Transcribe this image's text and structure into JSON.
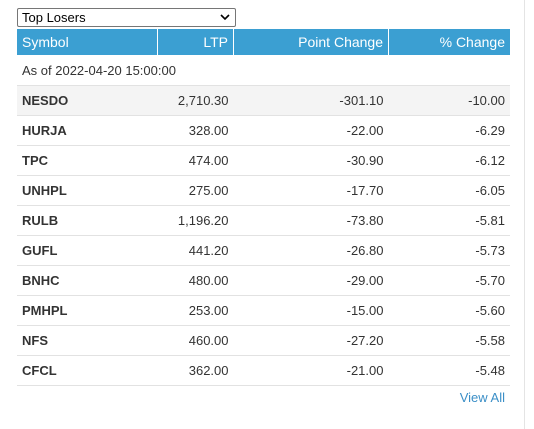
{
  "dropdown": {
    "selected": "Top Losers"
  },
  "table": {
    "headers": {
      "symbol": "Symbol",
      "ltp": "LTP",
      "point_change": "Point Change",
      "pct_change": "% Change"
    },
    "as_of": "As of 2022-04-20 15:00:00",
    "rows": [
      {
        "symbol": "NESDO",
        "ltp": "2,710.30",
        "point_change": "-301.10",
        "pct_change": "-10.00"
      },
      {
        "symbol": "HURJA",
        "ltp": "328.00",
        "point_change": "-22.00",
        "pct_change": "-6.29"
      },
      {
        "symbol": "TPC",
        "ltp": "474.00",
        "point_change": "-30.90",
        "pct_change": "-6.12"
      },
      {
        "symbol": "UNHPL",
        "ltp": "275.00",
        "point_change": "-17.70",
        "pct_change": "-6.05"
      },
      {
        "symbol": "RULB",
        "ltp": "1,196.20",
        "point_change": "-73.80",
        "pct_change": "-5.81"
      },
      {
        "symbol": "GUFL",
        "ltp": "441.20",
        "point_change": "-26.80",
        "pct_change": "-5.73"
      },
      {
        "symbol": "BNHC",
        "ltp": "480.00",
        "point_change": "-29.00",
        "pct_change": "-5.70"
      },
      {
        "symbol": "PMHPL",
        "ltp": "253.00",
        "point_change": "-15.00",
        "pct_change": "-5.60"
      },
      {
        "symbol": "NFS",
        "ltp": "460.00",
        "point_change": "-27.20",
        "pct_change": "-5.58"
      },
      {
        "symbol": "CFCL",
        "ltp": "362.00",
        "point_change": "-21.00",
        "pct_change": "-5.48"
      }
    ]
  },
  "footer": {
    "view_all": "View All"
  },
  "colors": {
    "header_bg": "#3b9fd2",
    "link": "#3b8fc7"
  }
}
